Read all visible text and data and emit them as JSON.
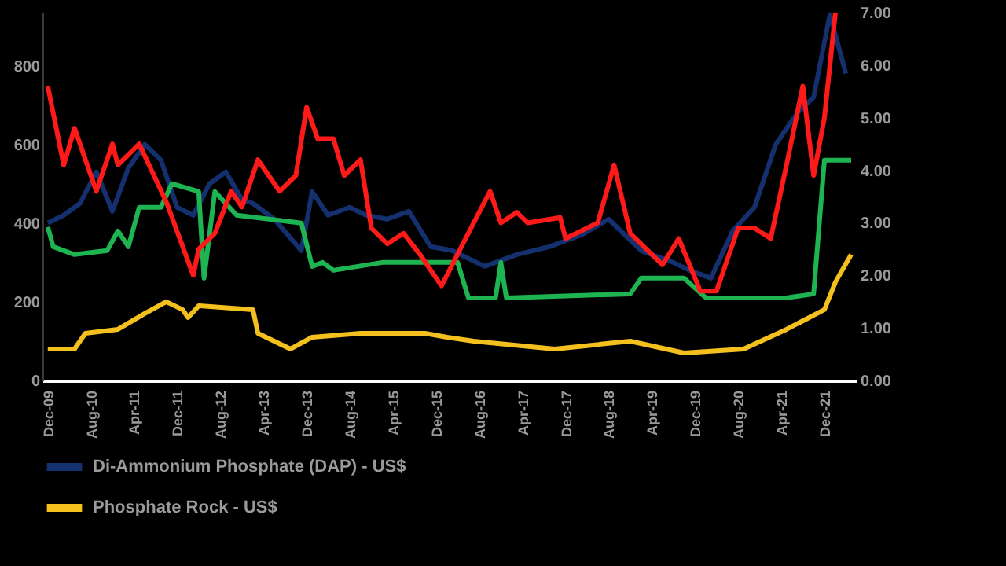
{
  "chart_data": {
    "type": "line",
    "legend": "bottom",
    "xlim": [
      "2009-11",
      "2022-06"
    ],
    "xticks": [
      {
        "value": "2009-12",
        "label": "Dec-09"
      },
      {
        "value": "2010-08",
        "label": "Aug-10"
      },
      {
        "value": "2011-04",
        "label": "Apr-11"
      },
      {
        "value": "2011-12",
        "label": "Dec-11"
      },
      {
        "value": "2012-08",
        "label": "Aug-12"
      },
      {
        "value": "2013-04",
        "label": "Apr-13"
      },
      {
        "value": "2013-12",
        "label": "Dec-13"
      },
      {
        "value": "2014-08",
        "label": "Aug-14"
      },
      {
        "value": "2015-04",
        "label": "Apr-15"
      },
      {
        "value": "2015-12",
        "label": "Dec-15"
      },
      {
        "value": "2016-08",
        "label": "Aug-16"
      },
      {
        "value": "2017-04",
        "label": "Apr-17"
      },
      {
        "value": "2017-12",
        "label": "Dec-17"
      },
      {
        "value": "2018-08",
        "label": "Aug-18"
      },
      {
        "value": "2019-04",
        "label": "Apr-19"
      },
      {
        "value": "2019-12",
        "label": "Dec-19"
      },
      {
        "value": "2020-08",
        "label": "Aug-20"
      },
      {
        "value": "2021-04",
        "label": "Apr-21"
      },
      {
        "value": "2021-12",
        "label": "Dec-21"
      }
    ],
    "ylim": [
      0,
      935
    ],
    "yticks": [
      0,
      200,
      400,
      600,
      800
    ],
    "y2lim": [
      0,
      7
    ],
    "y2ticks": [
      {
        "value": 0,
        "label": "0.00"
      },
      {
        "value": 1,
        "label": "1.00"
      },
      {
        "value": 2,
        "label": "2.00"
      },
      {
        "value": 3,
        "label": "3.00"
      },
      {
        "value": 4,
        "label": "4.00"
      },
      {
        "value": 5,
        "label": "5.00"
      },
      {
        "value": 6,
        "label": "6.00"
      },
      {
        "value": 7,
        "label": "7.00"
      }
    ],
    "series": [
      {
        "name": "Di-Ammonium Phosphate (DAP) - US$",
        "color": "#14306e",
        "x": [
          "2009-12",
          "2010-03",
          "2010-06",
          "2010-09",
          "2010-12",
          "2011-03",
          "2011-06",
          "2011-09",
          "2011-12",
          "2012-03",
          "2012-06",
          "2012-09",
          "2012-12",
          "2013-02",
          "2013-06",
          "2013-11",
          "2014-01",
          "2014-04",
          "2014-08",
          "2014-11",
          "2015-03",
          "2015-07",
          "2015-11",
          "2016-03",
          "2016-09",
          "2017-03",
          "2017-09",
          "2018-03",
          "2018-08",
          "2019-02",
          "2019-08",
          "2019-11",
          "2020-03",
          "2020-07",
          "2020-11",
          "2021-03",
          "2021-07",
          "2021-10",
          "2021-12",
          "2022-01",
          "2022-04"
        ],
        "values": [
          400,
          420,
          450,
          530,
          430,
          540,
          600,
          560,
          440,
          420,
          500,
          530,
          460,
          450,
          410,
          330,
          480,
          420,
          440,
          420,
          410,
          430,
          340,
          330,
          290,
          320,
          340,
          370,
          410,
          330,
          300,
          280,
          260,
          380,
          440,
          600,
          680,
          720,
          860,
          930,
          780
        ]
      },
      {
        "color": "#ff1a1a",
        "axis": "y2",
        "x": [
          "2009-12",
          "2010-03",
          "2010-05",
          "2010-09",
          "2010-12",
          "2011-01",
          "2011-05",
          "2011-10",
          "2012-03",
          "2012-04",
          "2012-07",
          "2012-10",
          "2012-12",
          "2013-03",
          "2013-07",
          "2013-10",
          "2013-12",
          "2014-02",
          "2014-05",
          "2014-07",
          "2014-10",
          "2014-12",
          "2015-03",
          "2015-06",
          "2015-09",
          "2016-01",
          "2016-05",
          "2016-10",
          "2016-12",
          "2017-03",
          "2017-05",
          "2017-11",
          "2017-12",
          "2018-06",
          "2018-09",
          "2018-12",
          "2019-06",
          "2019-09",
          "2020-01",
          "2020-04",
          "2020-08",
          "2020-11",
          "2021-02",
          "2021-05",
          "2021-08",
          "2021-10",
          "2021-12",
          "2022-02"
        ],
        "values": [
          5.6,
          4.1,
          4.8,
          3.6,
          4.5,
          4.1,
          4.5,
          3.4,
          2.0,
          2.5,
          2.8,
          3.6,
          3.3,
          4.2,
          3.6,
          3.9,
          5.2,
          4.6,
          4.6,
          3.9,
          4.2,
          2.9,
          2.6,
          2.8,
          2.4,
          1.8,
          2.6,
          3.6,
          3.0,
          3.2,
          3.0,
          3.1,
          2.7,
          3.0,
          4.1,
          2.8,
          2.2,
          2.7,
          1.7,
          1.7,
          2.9,
          2.9,
          2.7,
          4.1,
          5.6,
          3.9,
          5.0,
          7.0
        ]
      },
      {
        "color": "#1fb452",
        "x": [
          "2009-12",
          "2010-01",
          "2010-05",
          "2010-11",
          "2011-01",
          "2011-03",
          "2011-05",
          "2011-09",
          "2011-11",
          "2012-04",
          "2012-05",
          "2012-07",
          "2012-11",
          "2013-11",
          "2014-01",
          "2014-03",
          "2014-05",
          "2015-02",
          "2016-04",
          "2016-06",
          "2016-11",
          "2016-12",
          "2017-01",
          "2018-12",
          "2019-02",
          "2019-10",
          "2020-02",
          "2021-05",
          "2021-10",
          "2021-12",
          "2022-05"
        ],
        "values": [
          390,
          340,
          320,
          330,
          380,
          340,
          440,
          440,
          500,
          480,
          260,
          480,
          420,
          400,
          290,
          300,
          280,
          300,
          300,
          210,
          210,
          300,
          210,
          220,
          260,
          260,
          210,
          210,
          220,
          560,
          560
        ]
      },
      {
        "name": "Phosphate Rock - US$",
        "color": "#f4c01e",
        "x": [
          "2009-12",
          "2010-05",
          "2010-07",
          "2011-01",
          "2011-06",
          "2011-10",
          "2012-01",
          "2012-02",
          "2012-04",
          "2013-02",
          "2013-03",
          "2013-09",
          "2014-01",
          "2014-10",
          "2015-06",
          "2015-10",
          "2016-02",
          "2016-07",
          "2017-10",
          "2018-12",
          "2019-10",
          "2020-09",
          "2021-05",
          "2021-12",
          "2022-02",
          "2022-05"
        ],
        "values": [
          80,
          80,
          120,
          130,
          170,
          200,
          180,
          160,
          190,
          180,
          120,
          80,
          110,
          120,
          120,
          120,
          110,
          100,
          80,
          100,
          70,
          80,
          130,
          180,
          250,
          320
        ]
      }
    ]
  }
}
